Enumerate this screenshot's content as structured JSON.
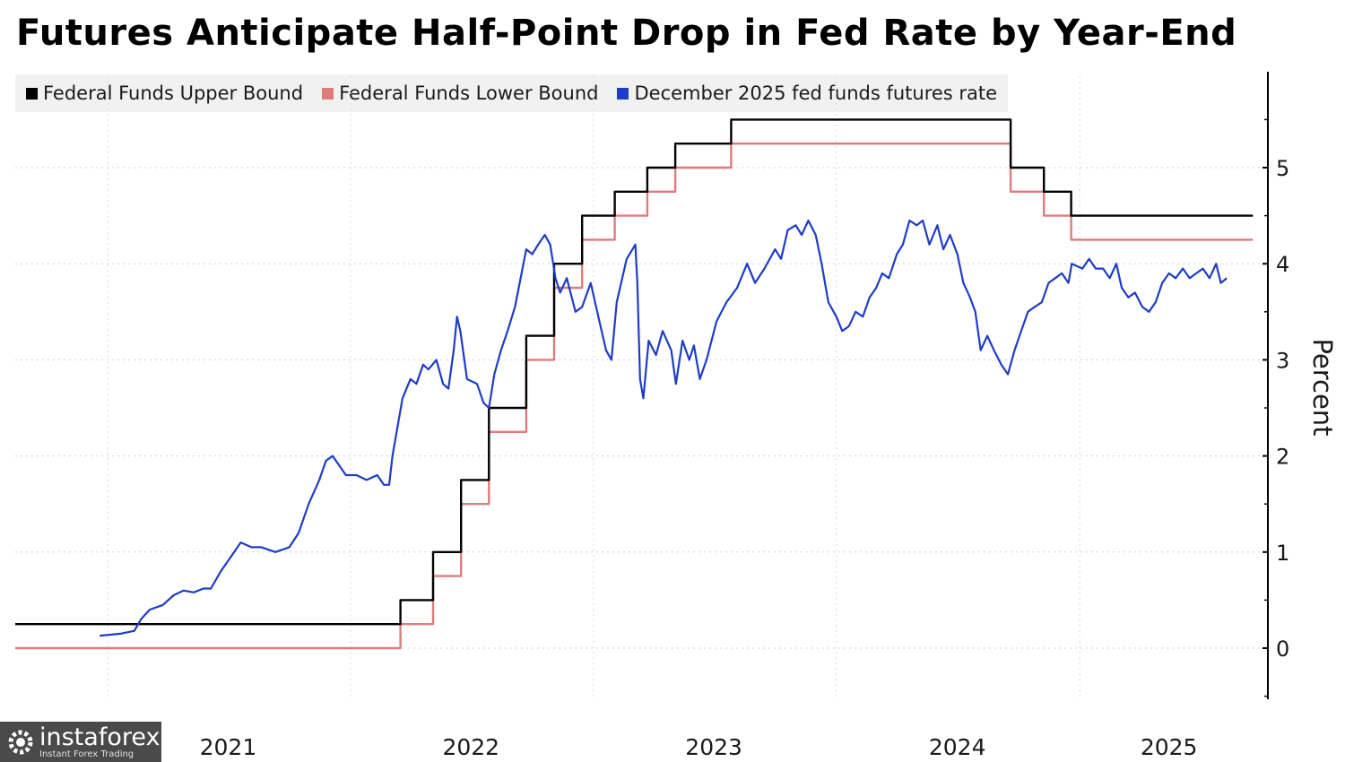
{
  "chart_data": {
    "type": "line",
    "title": "Futures Anticipate Half-Point Drop in Fed Rate by Year-End",
    "ylabel": "Percent",
    "ylim": [
      -0.5,
      5.9
    ],
    "yticks": [
      0,
      1,
      2,
      3,
      4,
      5
    ],
    "xlim": [
      "2020-08-15",
      "2025-10-08"
    ],
    "xtick_labels": [
      {
        "date": "2021-07-01",
        "label": "2021"
      },
      {
        "date": "2022-07-01",
        "label": "2022"
      },
      {
        "date": "2023-07-01",
        "label": "2023"
      },
      {
        "date": "2024-07-01",
        "label": "2024"
      },
      {
        "date": "2025-05-15",
        "label": "2025"
      }
    ],
    "year_gridlines": [
      "2021-01-01",
      "2022-01-01",
      "2023-01-01",
      "2024-01-01",
      "2025-01-01"
    ],
    "grid": true,
    "legend_position": "top-left",
    "series": [
      {
        "name": "Federal Funds Upper Bound",
        "color": "#000000",
        "step": true,
        "points": [
          [
            "2020-08-15",
            0.25
          ],
          [
            "2022-03-17",
            0.5
          ],
          [
            "2022-05-05",
            1.0
          ],
          [
            "2022-06-16",
            1.75
          ],
          [
            "2022-07-28",
            2.5
          ],
          [
            "2022-09-22",
            3.25
          ],
          [
            "2022-11-03",
            4.0
          ],
          [
            "2022-12-15",
            4.5
          ],
          [
            "2023-02-02",
            4.75
          ],
          [
            "2023-03-23",
            5.0
          ],
          [
            "2023-05-04",
            5.25
          ],
          [
            "2023-07-27",
            5.5
          ],
          [
            "2024-09-19",
            5.0
          ],
          [
            "2024-11-08",
            4.75
          ],
          [
            "2024-12-19",
            4.5
          ],
          [
            "2025-09-18",
            4.5
          ]
        ]
      },
      {
        "name": "Federal Funds Lower Bound",
        "color": "#e07b7b",
        "step": true,
        "points": [
          [
            "2020-08-15",
            0.0
          ],
          [
            "2022-03-17",
            0.25
          ],
          [
            "2022-05-05",
            0.75
          ],
          [
            "2022-06-16",
            1.5
          ],
          [
            "2022-07-28",
            2.25
          ],
          [
            "2022-09-22",
            3.0
          ],
          [
            "2022-11-03",
            3.75
          ],
          [
            "2022-12-15",
            4.25
          ],
          [
            "2023-02-02",
            4.5
          ],
          [
            "2023-03-23",
            4.75
          ],
          [
            "2023-05-04",
            5.0
          ],
          [
            "2023-07-27",
            5.25
          ],
          [
            "2024-09-19",
            4.75
          ],
          [
            "2024-11-08",
            4.5
          ],
          [
            "2024-12-19",
            4.25
          ],
          [
            "2025-09-18",
            4.25
          ]
        ]
      },
      {
        "name": "December 2025 fed funds futures rate",
        "color": "#1c3dc8",
        "step": false,
        "points": [
          [
            "2020-12-20",
            0.13
          ],
          [
            "2021-01-20",
            0.15
          ],
          [
            "2021-02-10",
            0.18
          ],
          [
            "2021-02-20",
            0.3
          ],
          [
            "2021-03-05",
            0.4
          ],
          [
            "2021-03-25",
            0.45
          ],
          [
            "2021-04-10",
            0.55
          ],
          [
            "2021-04-25",
            0.6
          ],
          [
            "2021-05-10",
            0.58
          ],
          [
            "2021-05-25",
            0.62
          ],
          [
            "2021-06-05",
            0.62
          ],
          [
            "2021-06-20",
            0.8
          ],
          [
            "2021-07-05",
            0.95
          ],
          [
            "2021-07-20",
            1.1
          ],
          [
            "2021-08-05",
            1.05
          ],
          [
            "2021-08-20",
            1.05
          ],
          [
            "2021-09-10",
            1.0
          ],
          [
            "2021-10-01",
            1.05
          ],
          [
            "2021-10-15",
            1.2
          ],
          [
            "2021-10-30",
            1.5
          ],
          [
            "2021-11-15",
            1.75
          ],
          [
            "2021-11-25",
            1.95
          ],
          [
            "2021-12-05",
            2.0
          ],
          [
            "2021-12-15",
            1.9
          ],
          [
            "2021-12-25",
            1.8
          ],
          [
            "2022-01-10",
            1.8
          ],
          [
            "2022-01-25",
            1.75
          ],
          [
            "2022-02-10",
            1.8
          ],
          [
            "2022-02-20",
            1.7
          ],
          [
            "2022-02-28",
            1.7
          ],
          [
            "2022-03-05",
            2.0
          ],
          [
            "2022-03-10",
            2.2
          ],
          [
            "2022-03-20",
            2.6
          ],
          [
            "2022-04-01",
            2.8
          ],
          [
            "2022-04-10",
            2.75
          ],
          [
            "2022-04-20",
            2.95
          ],
          [
            "2022-04-28",
            2.9
          ],
          [
            "2022-05-10",
            3.0
          ],
          [
            "2022-05-20",
            2.75
          ],
          [
            "2022-05-28",
            2.7
          ],
          [
            "2022-06-05",
            3.1
          ],
          [
            "2022-06-10",
            3.45
          ],
          [
            "2022-06-15",
            3.3
          ],
          [
            "2022-06-25",
            2.8
          ],
          [
            "2022-07-10",
            2.75
          ],
          [
            "2022-07-20",
            2.55
          ],
          [
            "2022-07-28",
            2.5
          ],
          [
            "2022-08-05",
            2.85
          ],
          [
            "2022-08-15",
            3.1
          ],
          [
            "2022-08-25",
            3.3
          ],
          [
            "2022-09-05",
            3.55
          ],
          [
            "2022-09-15",
            3.9
          ],
          [
            "2022-09-22",
            4.15
          ],
          [
            "2022-10-01",
            4.1
          ],
          [
            "2022-10-10",
            4.2
          ],
          [
            "2022-10-20",
            4.3
          ],
          [
            "2022-10-28",
            4.2
          ],
          [
            "2022-11-05",
            3.85
          ],
          [
            "2022-11-12",
            3.7
          ],
          [
            "2022-11-22",
            3.85
          ],
          [
            "2022-12-05",
            3.5
          ],
          [
            "2022-12-15",
            3.55
          ],
          [
            "2022-12-28",
            3.8
          ],
          [
            "2023-01-10",
            3.4
          ],
          [
            "2023-01-20",
            3.1
          ],
          [
            "2023-01-28",
            3.0
          ],
          [
            "2023-02-05",
            3.6
          ],
          [
            "2023-02-20",
            4.05
          ],
          [
            "2023-03-05",
            4.2
          ],
          [
            "2023-03-08",
            3.8
          ],
          [
            "2023-03-12",
            2.8
          ],
          [
            "2023-03-17",
            2.6
          ],
          [
            "2023-03-25",
            3.2
          ],
          [
            "2023-04-05",
            3.05
          ],
          [
            "2023-04-15",
            3.3
          ],
          [
            "2023-04-28",
            3.1
          ],
          [
            "2023-05-05",
            2.75
          ],
          [
            "2023-05-15",
            3.2
          ],
          [
            "2023-05-25",
            3.0
          ],
          [
            "2023-06-01",
            3.15
          ],
          [
            "2023-06-10",
            2.8
          ],
          [
            "2023-06-20",
            3.0
          ],
          [
            "2023-07-05",
            3.4
          ],
          [
            "2023-07-20",
            3.6
          ],
          [
            "2023-08-05",
            3.75
          ],
          [
            "2023-08-20",
            4.0
          ],
          [
            "2023-09-01",
            3.8
          ],
          [
            "2023-09-15",
            3.95
          ],
          [
            "2023-10-01",
            4.15
          ],
          [
            "2023-10-10",
            4.05
          ],
          [
            "2023-10-20",
            4.35
          ],
          [
            "2023-11-01",
            4.4
          ],
          [
            "2023-11-10",
            4.3
          ],
          [
            "2023-11-20",
            4.45
          ],
          [
            "2023-12-01",
            4.3
          ],
          [
            "2023-12-10",
            4.0
          ],
          [
            "2023-12-20",
            3.6
          ],
          [
            "2024-01-01",
            3.45
          ],
          [
            "2024-01-10",
            3.3
          ],
          [
            "2024-01-20",
            3.35
          ],
          [
            "2024-01-30",
            3.5
          ],
          [
            "2024-02-10",
            3.45
          ],
          [
            "2024-02-20",
            3.65
          ],
          [
            "2024-03-01",
            3.75
          ],
          [
            "2024-03-10",
            3.9
          ],
          [
            "2024-03-20",
            3.85
          ],
          [
            "2024-04-01",
            4.1
          ],
          [
            "2024-04-10",
            4.2
          ],
          [
            "2024-04-20",
            4.45
          ],
          [
            "2024-05-01",
            4.4
          ],
          [
            "2024-05-10",
            4.45
          ],
          [
            "2024-05-20",
            4.2
          ],
          [
            "2024-06-01",
            4.4
          ],
          [
            "2024-06-10",
            4.15
          ],
          [
            "2024-06-20",
            4.3
          ],
          [
            "2024-07-01",
            4.1
          ],
          [
            "2024-07-10",
            3.8
          ],
          [
            "2024-07-20",
            3.65
          ],
          [
            "2024-07-28",
            3.5
          ],
          [
            "2024-08-05",
            3.1
          ],
          [
            "2024-08-15",
            3.25
          ],
          [
            "2024-08-25",
            3.1
          ],
          [
            "2024-09-05",
            2.95
          ],
          [
            "2024-09-15",
            2.85
          ],
          [
            "2024-09-25",
            3.1
          ],
          [
            "2024-10-05",
            3.3
          ],
          [
            "2024-10-15",
            3.5
          ],
          [
            "2024-10-25",
            3.55
          ],
          [
            "2024-11-05",
            3.6
          ],
          [
            "2024-11-15",
            3.8
          ],
          [
            "2024-11-25",
            3.85
          ],
          [
            "2024-12-05",
            3.9
          ],
          [
            "2024-12-15",
            3.8
          ],
          [
            "2024-12-20",
            4.0
          ],
          [
            "2025-01-05",
            3.95
          ],
          [
            "2025-01-15",
            4.05
          ],
          [
            "2025-01-25",
            3.95
          ],
          [
            "2025-02-05",
            3.95
          ],
          [
            "2025-02-15",
            3.85
          ],
          [
            "2025-02-25",
            4.0
          ],
          [
            "2025-03-05",
            3.75
          ],
          [
            "2025-03-15",
            3.65
          ],
          [
            "2025-03-25",
            3.7
          ],
          [
            "2025-04-05",
            3.55
          ],
          [
            "2025-04-15",
            3.5
          ],
          [
            "2025-04-25",
            3.6
          ],
          [
            "2025-05-05",
            3.8
          ],
          [
            "2025-05-15",
            3.9
          ],
          [
            "2025-05-25",
            3.85
          ],
          [
            "2025-06-05",
            3.95
          ],
          [
            "2025-06-15",
            3.85
          ],
          [
            "2025-06-25",
            3.9
          ],
          [
            "2025-07-05",
            3.95
          ],
          [
            "2025-07-15",
            3.85
          ],
          [
            "2025-07-25",
            4.0
          ],
          [
            "2025-08-01",
            3.8
          ],
          [
            "2025-08-10",
            3.85
          ]
        ]
      }
    ]
  },
  "watermark": {
    "brand": "instaforex",
    "tagline": "Instant Forex Trading"
  }
}
